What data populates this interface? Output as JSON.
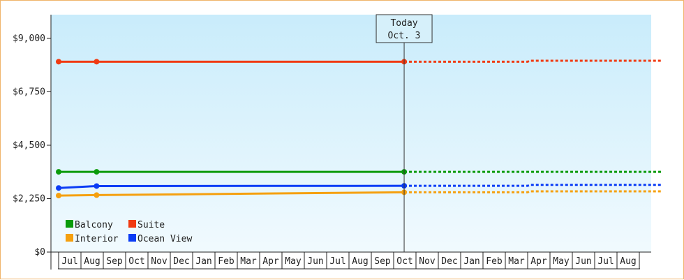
{
  "chart_data": {
    "type": "line",
    "ylim": [
      0,
      10000
    ],
    "y_ticks": [
      {
        "value": 0,
        "label": "$0"
      },
      {
        "value": 2250,
        "label": "$2,250"
      },
      {
        "value": 4500,
        "label": "$4,500"
      },
      {
        "value": 6750,
        "label": "$6,750"
      },
      {
        "value": 9000,
        "label": "$9,000"
      }
    ],
    "months": [
      "Jul",
      "Aug",
      "Sep",
      "Oct",
      "Nov",
      "Dec",
      "Jan",
      "Feb",
      "Mar",
      "Apr",
      "May",
      "Jun",
      "Jul",
      "Aug",
      "Sep",
      "Oct",
      "Nov",
      "Dec",
      "Jan",
      "Feb",
      "Mar",
      "Apr",
      "May",
      "Jun",
      "Jul",
      "Aug"
    ],
    "today": {
      "month_index": 14.97,
      "label_line1": "Today",
      "label_line2": "Oct. 3"
    },
    "forecast_end_index": 26.5,
    "series": [
      {
        "name": "Balcony",
        "color": "#0a9b0a",
        "points": [
          [
            -0.5,
            3380
          ],
          [
            1.2,
            3380
          ],
          [
            14.97,
            3380
          ]
        ],
        "forecast": [
          [
            14.97,
            3380
          ],
          [
            26.5,
            3380
          ]
        ]
      },
      {
        "name": "Suite",
        "color": "#f03a12",
        "points": [
          [
            -0.5,
            8020
          ],
          [
            1.2,
            8020
          ],
          [
            14.97,
            8020
          ]
        ],
        "forecast": [
          [
            14.97,
            8020
          ],
          [
            20.5,
            8020
          ],
          [
            20.6,
            8060
          ],
          [
            26.5,
            8060
          ]
        ]
      },
      {
        "name": "Interior",
        "color": "#f5a00f",
        "points": [
          [
            -0.5,
            2380
          ],
          [
            1.2,
            2400
          ],
          [
            14.97,
            2520
          ]
        ],
        "forecast": [
          [
            14.97,
            2520
          ],
          [
            20.5,
            2520
          ],
          [
            20.6,
            2560
          ],
          [
            26.5,
            2560
          ]
        ]
      },
      {
        "name": "Ocean View",
        "color": "#0a3cf5",
        "points": [
          [
            -0.5,
            2700
          ],
          [
            1.2,
            2780
          ],
          [
            14.97,
            2790
          ]
        ],
        "forecast": [
          [
            14.97,
            2790
          ],
          [
            20.5,
            2790
          ],
          [
            20.6,
            2830
          ],
          [
            26.5,
            2830
          ]
        ]
      }
    ],
    "legend_order": [
      "Balcony",
      "Suite",
      "Interior",
      "Ocean View"
    ]
  }
}
